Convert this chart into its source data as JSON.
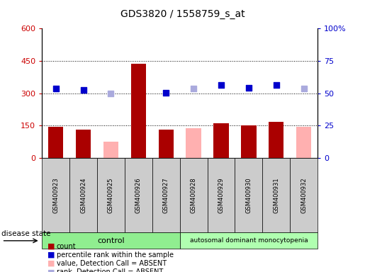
{
  "title": "GDS3820 / 1558759_s_at",
  "samples": [
    "GSM400923",
    "GSM400924",
    "GSM400925",
    "GSM400926",
    "GSM400927",
    "GSM400928",
    "GSM400929",
    "GSM400930",
    "GSM400931",
    "GSM400932"
  ],
  "bar_values": [
    145,
    132,
    null,
    435,
    132,
    null,
    160,
    152,
    168,
    null
  ],
  "bar_absent": [
    null,
    null,
    75,
    null,
    null,
    138,
    null,
    null,
    null,
    143
  ],
  "rank_present": [
    320,
    315,
    null,
    null,
    302,
    null,
    338,
    325,
    338,
    null
  ],
  "rank_absent": [
    null,
    null,
    299,
    null,
    null,
    322,
    null,
    null,
    null,
    321
  ],
  "n_samples": 10,
  "ylim_left": [
    0,
    600
  ],
  "ylim_right": [
    0,
    100
  ],
  "yticks_left": [
    0,
    150,
    300,
    450,
    600
  ],
  "yticks_right": [
    0,
    25,
    50,
    75,
    100
  ],
  "yticklabels_left": [
    "0",
    "150",
    "300",
    "450",
    "600"
  ],
  "yticklabels_right": [
    "0",
    "25",
    "50",
    "75",
    "100%"
  ],
  "control_n": 5,
  "disease_n": 5,
  "control_label": "control",
  "disease_label": "autosomal dominant monocytopenia",
  "color_bar_present": "#aa0000",
  "color_bar_absent": "#ffb0b0",
  "color_rank_present": "#0000cc",
  "color_rank_absent": "#aaaadd",
  "bg_label_area": "#cccccc",
  "bg_control": "#90ee90",
  "bg_disease": "#b0ffb0",
  "legend_items": [
    "count",
    "percentile rank within the sample",
    "value, Detection Call = ABSENT",
    "rank, Detection Call = ABSENT"
  ]
}
